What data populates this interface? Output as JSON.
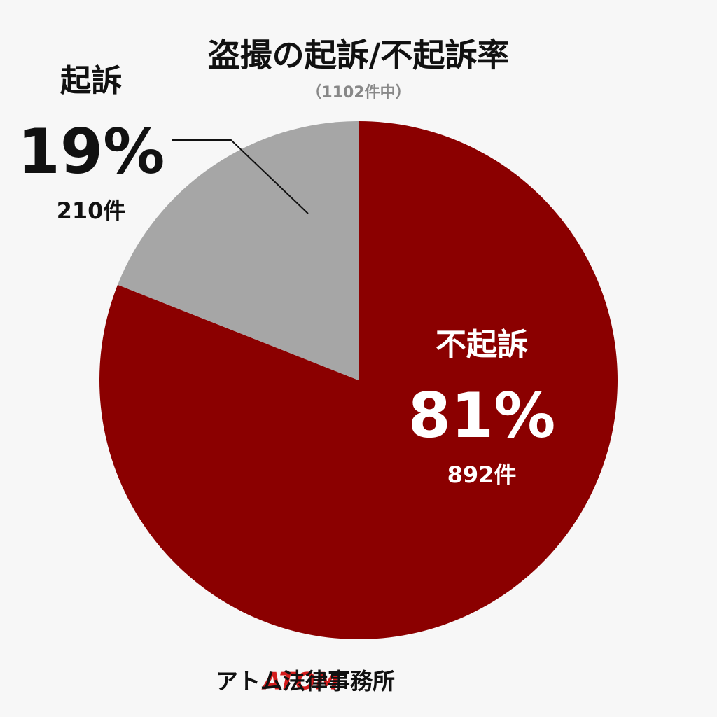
{
  "chart_data": {
    "type": "pie",
    "title": "盗撮の起訴/不起訴率",
    "subtitle": "（1102件中）",
    "categories": [
      "不起訴",
      "起訴"
    ],
    "values": [
      81,
      19
    ],
    "value_labels": [
      "81%",
      "19%"
    ],
    "counts": [
      892,
      210
    ],
    "count_labels": [
      "892件",
      "210件"
    ],
    "colors": [
      "#8b0000",
      "#a6a6a6"
    ]
  },
  "footer": {
    "brand": "ATOM",
    "name": "アトム法律事務所"
  }
}
